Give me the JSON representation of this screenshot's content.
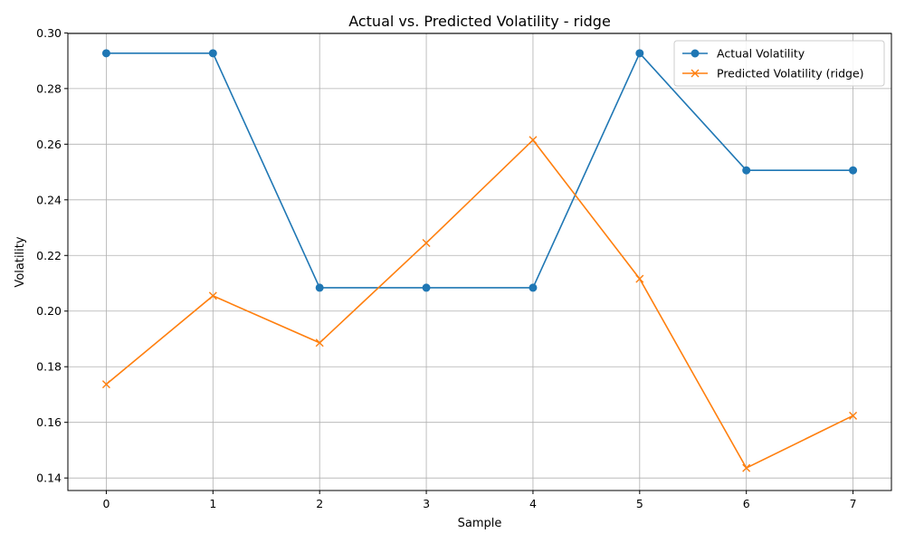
{
  "chart_data": {
    "type": "line",
    "title": "Actual vs. Predicted Volatility - ridge",
    "xlabel": "Sample",
    "ylabel": "Volatility",
    "x": [
      0,
      1,
      2,
      3,
      4,
      5,
      6,
      7
    ],
    "xticks": [
      "0",
      "1",
      "2",
      "3",
      "4",
      "5",
      "6",
      "7"
    ],
    "yticks": [
      "0.14",
      "0.16",
      "0.18",
      "0.20",
      "0.22",
      "0.24",
      "0.26",
      "0.28",
      "0.30"
    ],
    "xlim": [
      -0.36,
      7.36
    ],
    "ylim": [
      0.1355,
      0.2998
    ],
    "grid": true,
    "legend_position": "top-right",
    "series": [
      {
        "name": "Actual Volatility",
        "color": "#1f77b4",
        "marker": "circle",
        "values": [
          0.2927,
          0.2927,
          0.2084,
          0.2084,
          0.2084,
          0.2927,
          0.2506,
          0.2506
        ]
      },
      {
        "name": "Predicted Volatility (ridge)",
        "color": "#ff7f0e",
        "marker": "x",
        "values": [
          0.1737,
          0.2055,
          0.1886,
          0.2245,
          0.2615,
          0.2116,
          0.1436,
          0.1624
        ]
      }
    ]
  }
}
